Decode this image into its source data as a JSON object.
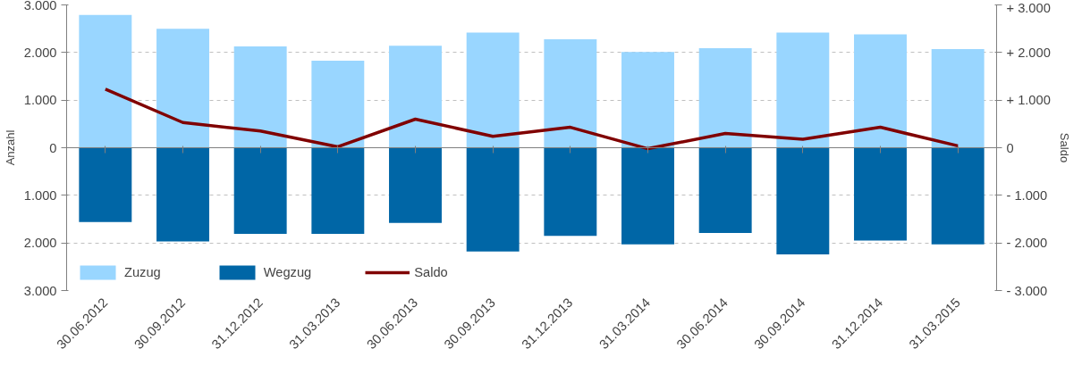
{
  "chart_data": {
    "type": "bar",
    "stacked": true,
    "ylabel": "Anzahl",
    "y2label": "Saldo",
    "categories": [
      "30.06.2012",
      "30.09.2012",
      "31.12.2012",
      "31.03.2013",
      "30.06.2013",
      "30.09.2013",
      "31.12.2013",
      "31.03.2014",
      "30.06.2014",
      "30.09.2014",
      "31.12.2014",
      "31.03.2015"
    ],
    "series": [
      {
        "name": "Zuzug",
        "color": "#99d6ff",
        "values": [
          2790,
          2500,
          2130,
          1830,
          2140,
          2420,
          2280,
          2010,
          2090,
          2420,
          2380,
          2070
        ]
      },
      {
        "name": "Wegzug",
        "color": "#0066a6",
        "values": [
          -1560,
          -1970,
          -1810,
          -1810,
          -1580,
          -2180,
          -1850,
          -2030,
          -1790,
          -2240,
          -1950,
          -2030
        ]
      },
      {
        "name": "Saldo",
        "type": "line",
        "axis": "y2",
        "color": "#800000",
        "values": [
          1230,
          530,
          350,
          20,
          600,
          240,
          430,
          -20,
          300,
          180,
          430,
          40
        ]
      }
    ],
    "ylim": [
      -3000,
      3000
    ],
    "yticks": [
      {
        "value": -3000,
        "label": "3.000"
      },
      {
        "value": -2000,
        "label": "2.000"
      },
      {
        "value": -1000,
        "label": "1.000"
      },
      0,
      {
        "value": 1000,
        "label": "1.000"
      },
      {
        "value": 2000,
        "label": "2.000"
      },
      {
        "value": 3000,
        "label": "3.000"
      }
    ],
    "y2lim": [
      -3000,
      3000
    ],
    "y2ticks": [
      {
        "value": -3000,
        "label": "- 3.000"
      },
      {
        "value": -2000,
        "label": "- 2.000"
      },
      {
        "value": -1000,
        "label": "- 1.000"
      },
      0,
      {
        "value": 1000,
        "label": "+ 1.000"
      },
      {
        "value": 2000,
        "label": "+ 2.000"
      },
      {
        "value": 3000,
        "label": "+ 3.000"
      }
    ],
    "grid": "y",
    "legend": "bottom left",
    "marker": "none",
    "line_style": "solid"
  }
}
